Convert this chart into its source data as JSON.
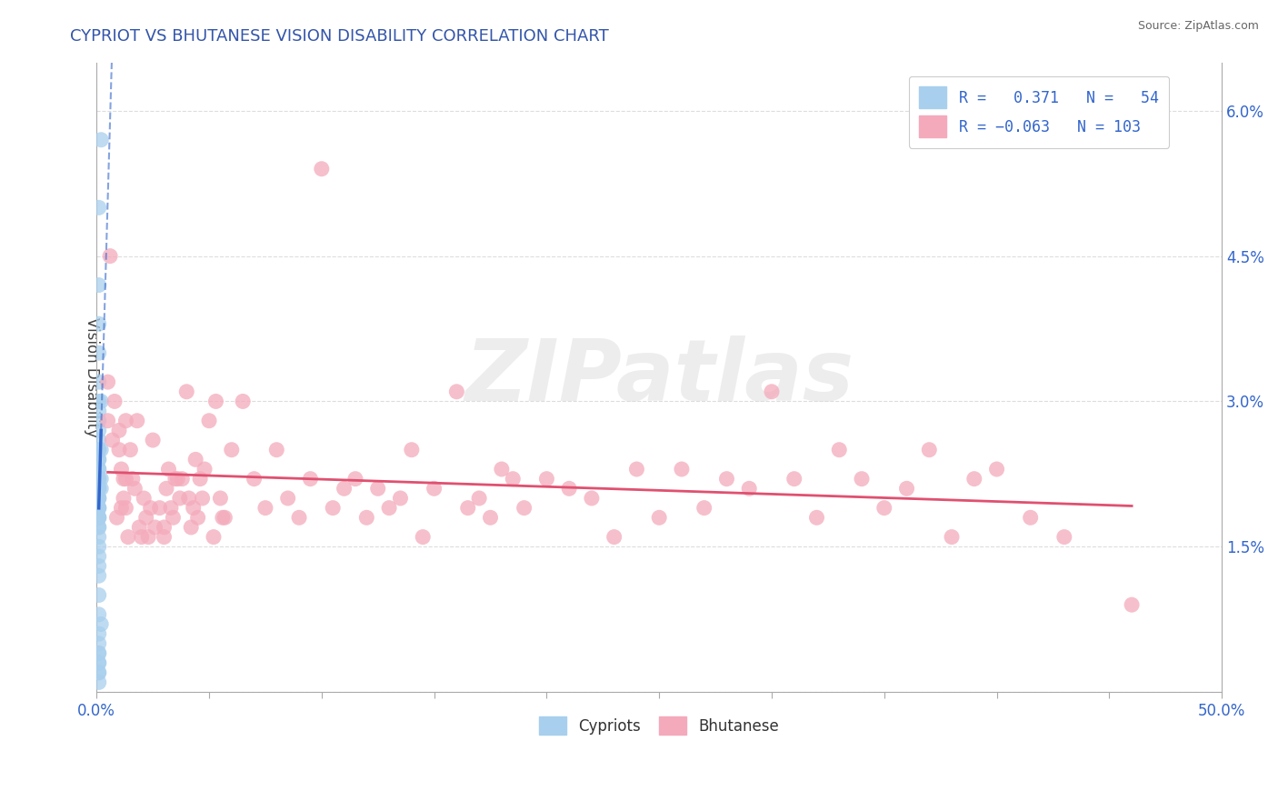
{
  "title": "CYPRIOT VS BHUTANESE VISION DISABILITY CORRELATION CHART",
  "source": "Source: ZipAtlas.com",
  "ylabel": "Vision Disability",
  "xlim": [
    0.0,
    0.5
  ],
  "ylim": [
    0.0,
    0.065
  ],
  "yticks": [
    0.0,
    0.015,
    0.03,
    0.045,
    0.06
  ],
  "ytick_labels": [
    "",
    "1.5%",
    "3.0%",
    "4.5%",
    "6.0%"
  ],
  "xtick_positions": [
    0.0,
    0.05,
    0.1,
    0.15,
    0.2,
    0.25,
    0.3,
    0.35,
    0.4,
    0.45,
    0.5
  ],
  "cypriot_color": "#A8CFED",
  "bhutanese_color": "#F4AABB",
  "cypriot_line_color": "#3366CC",
  "bhutanese_line_color": "#E05070",
  "watermark": "ZIPatlas",
  "cypriot_points": [
    [
      0.001,
      0.05
    ],
    [
      0.002,
      0.057
    ],
    [
      0.001,
      0.042
    ],
    [
      0.001,
      0.038
    ],
    [
      0.001,
      0.035
    ],
    [
      0.001,
      0.032
    ],
    [
      0.001,
      0.03
    ],
    [
      0.001,
      0.029
    ],
    [
      0.001,
      0.028
    ],
    [
      0.001,
      0.027
    ],
    [
      0.001,
      0.026
    ],
    [
      0.001,
      0.025
    ],
    [
      0.001,
      0.025
    ],
    [
      0.001,
      0.024
    ],
    [
      0.001,
      0.024
    ],
    [
      0.001,
      0.023
    ],
    [
      0.001,
      0.023
    ],
    [
      0.001,
      0.022
    ],
    [
      0.001,
      0.022
    ],
    [
      0.001,
      0.021
    ],
    [
      0.001,
      0.021
    ],
    [
      0.001,
      0.021
    ],
    [
      0.001,
      0.02
    ],
    [
      0.001,
      0.02
    ],
    [
      0.001,
      0.02
    ],
    [
      0.001,
      0.019
    ],
    [
      0.001,
      0.019
    ],
    [
      0.001,
      0.019
    ],
    [
      0.001,
      0.018
    ],
    [
      0.001,
      0.018
    ],
    [
      0.001,
      0.018
    ],
    [
      0.001,
      0.017
    ],
    [
      0.001,
      0.017
    ],
    [
      0.001,
      0.016
    ],
    [
      0.001,
      0.015
    ],
    [
      0.001,
      0.014
    ],
    [
      0.001,
      0.013
    ],
    [
      0.001,
      0.012
    ],
    [
      0.001,
      0.01
    ],
    [
      0.001,
      0.008
    ],
    [
      0.001,
      0.006
    ],
    [
      0.001,
      0.005
    ],
    [
      0.001,
      0.004
    ],
    [
      0.001,
      0.004
    ],
    [
      0.001,
      0.003
    ],
    [
      0.001,
      0.003
    ],
    [
      0.001,
      0.002
    ],
    [
      0.001,
      0.002
    ],
    [
      0.001,
      0.001
    ],
    [
      0.002,
      0.03
    ],
    [
      0.002,
      0.025
    ],
    [
      0.002,
      0.022
    ],
    [
      0.002,
      0.021
    ],
    [
      0.002,
      0.007
    ]
  ],
  "bhutanese_points": [
    [
      0.005,
      0.032
    ],
    [
      0.005,
      0.028
    ],
    [
      0.006,
      0.045
    ],
    [
      0.007,
      0.026
    ],
    [
      0.008,
      0.03
    ],
    [
      0.009,
      0.018
    ],
    [
      0.01,
      0.027
    ],
    [
      0.01,
      0.025
    ],
    [
      0.011,
      0.023
    ],
    [
      0.011,
      0.019
    ],
    [
      0.012,
      0.022
    ],
    [
      0.012,
      0.02
    ],
    [
      0.013,
      0.028
    ],
    [
      0.013,
      0.022
    ],
    [
      0.013,
      0.019
    ],
    [
      0.014,
      0.016
    ],
    [
      0.015,
      0.025
    ],
    [
      0.016,
      0.022
    ],
    [
      0.017,
      0.021
    ],
    [
      0.018,
      0.028
    ],
    [
      0.019,
      0.017
    ],
    [
      0.02,
      0.016
    ],
    [
      0.021,
      0.02
    ],
    [
      0.022,
      0.018
    ],
    [
      0.023,
      0.016
    ],
    [
      0.024,
      0.019
    ],
    [
      0.025,
      0.026
    ],
    [
      0.026,
      0.017
    ],
    [
      0.028,
      0.019
    ],
    [
      0.03,
      0.017
    ],
    [
      0.03,
      0.016
    ],
    [
      0.031,
      0.021
    ],
    [
      0.032,
      0.023
    ],
    [
      0.033,
      0.019
    ],
    [
      0.034,
      0.018
    ],
    [
      0.035,
      0.022
    ],
    [
      0.036,
      0.022
    ],
    [
      0.037,
      0.02
    ],
    [
      0.038,
      0.022
    ],
    [
      0.04,
      0.031
    ],
    [
      0.041,
      0.02
    ],
    [
      0.042,
      0.017
    ],
    [
      0.043,
      0.019
    ],
    [
      0.044,
      0.024
    ],
    [
      0.045,
      0.018
    ],
    [
      0.046,
      0.022
    ],
    [
      0.047,
      0.02
    ],
    [
      0.048,
      0.023
    ],
    [
      0.05,
      0.028
    ],
    [
      0.052,
      0.016
    ],
    [
      0.053,
      0.03
    ],
    [
      0.055,
      0.02
    ],
    [
      0.056,
      0.018
    ],
    [
      0.057,
      0.018
    ],
    [
      0.06,
      0.025
    ],
    [
      0.065,
      0.03
    ],
    [
      0.07,
      0.022
    ],
    [
      0.075,
      0.019
    ],
    [
      0.08,
      0.025
    ],
    [
      0.085,
      0.02
    ],
    [
      0.09,
      0.018
    ],
    [
      0.095,
      0.022
    ],
    [
      0.1,
      0.054
    ],
    [
      0.105,
      0.019
    ],
    [
      0.11,
      0.021
    ],
    [
      0.115,
      0.022
    ],
    [
      0.12,
      0.018
    ],
    [
      0.125,
      0.021
    ],
    [
      0.13,
      0.019
    ],
    [
      0.135,
      0.02
    ],
    [
      0.14,
      0.025
    ],
    [
      0.145,
      0.016
    ],
    [
      0.15,
      0.021
    ],
    [
      0.16,
      0.031
    ],
    [
      0.165,
      0.019
    ],
    [
      0.17,
      0.02
    ],
    [
      0.175,
      0.018
    ],
    [
      0.18,
      0.023
    ],
    [
      0.185,
      0.022
    ],
    [
      0.19,
      0.019
    ],
    [
      0.2,
      0.022
    ],
    [
      0.21,
      0.021
    ],
    [
      0.22,
      0.02
    ],
    [
      0.23,
      0.016
    ],
    [
      0.24,
      0.023
    ],
    [
      0.25,
      0.018
    ],
    [
      0.26,
      0.023
    ],
    [
      0.27,
      0.019
    ],
    [
      0.28,
      0.022
    ],
    [
      0.29,
      0.021
    ],
    [
      0.3,
      0.031
    ],
    [
      0.31,
      0.022
    ],
    [
      0.32,
      0.018
    ],
    [
      0.33,
      0.025
    ],
    [
      0.34,
      0.022
    ],
    [
      0.35,
      0.019
    ],
    [
      0.36,
      0.021
    ],
    [
      0.37,
      0.025
    ],
    [
      0.38,
      0.016
    ],
    [
      0.39,
      0.022
    ],
    [
      0.4,
      0.023
    ],
    [
      0.415,
      0.018
    ],
    [
      0.43,
      0.016
    ],
    [
      0.46,
      0.009
    ]
  ],
  "title_color": "#3355AA",
  "source_color": "#666666",
  "grid_color": "#DDDDDD",
  "watermark_color": "#DDDDDD"
}
